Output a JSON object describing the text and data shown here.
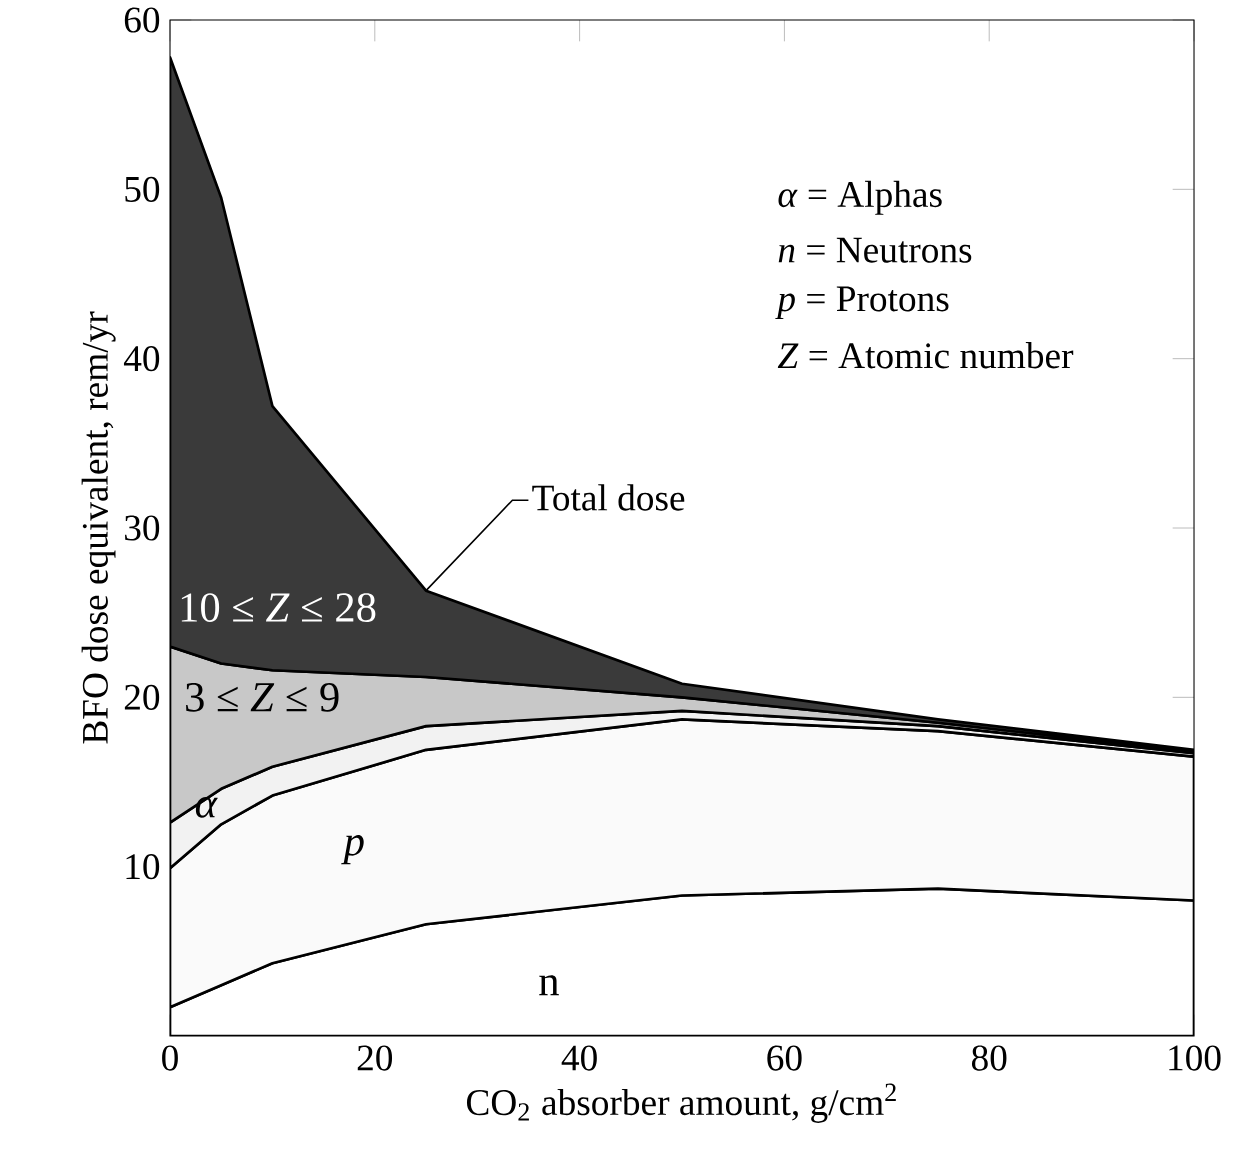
{
  "chart_data": {
    "type": "area",
    "stacked": true,
    "xlabel": "CO$_{2}$ absorber amount, g/cm$^{2}$",
    "ylabel": "BFO dose equivalent, rem/yr",
    "x": [
      0,
      5,
      10,
      25,
      50,
      75,
      100
    ],
    "series": [
      {
        "name": "n",
        "color": "#ffffff",
        "values": [
          1.7,
          3.0,
          4.3,
          6.6,
          8.3,
          8.7,
          8.0
        ]
      },
      {
        "name": "p",
        "color": "#fafafa",
        "values": [
          8.2,
          9.5,
          9.9,
          10.3,
          10.4,
          9.3,
          8.5
        ]
      },
      {
        "name": "α",
        "color": "#f2f2f2",
        "values": [
          2.7,
          2.1,
          1.7,
          1.4,
          0.5,
          0.3,
          0.2
        ]
      },
      {
        "name": "3 ≤ *Z* ≤ 9",
        "color": "#c8c8c8",
        "values": [
          10.4,
          7.4,
          5.7,
          2.9,
          0.8,
          0.2,
          0.1
        ]
      },
      {
        "name": "10 ≤ *Z* ≤ 28",
        "color": "#3a3a3a",
        "values": [
          34.8,
          27.5,
          15.6,
          5.1,
          0.8,
          0.2,
          0.1
        ]
      }
    ],
    "xlim": [
      0,
      100
    ],
    "ylim": [
      0,
      60
    ],
    "xticks": [
      0,
      20,
      40,
      60,
      80,
      100
    ],
    "yticks": [
      10,
      20,
      30,
      40,
      50,
      60
    ],
    "grid": false,
    "annotations": [
      {
        "text": "Total dose",
        "x": 25,
        "y": 26.3
      },
      "*α* = Alphas",
      "*n* = Neutrons",
      "*p* = Protons",
      "*Z* = Atomic number"
    ]
  }
}
